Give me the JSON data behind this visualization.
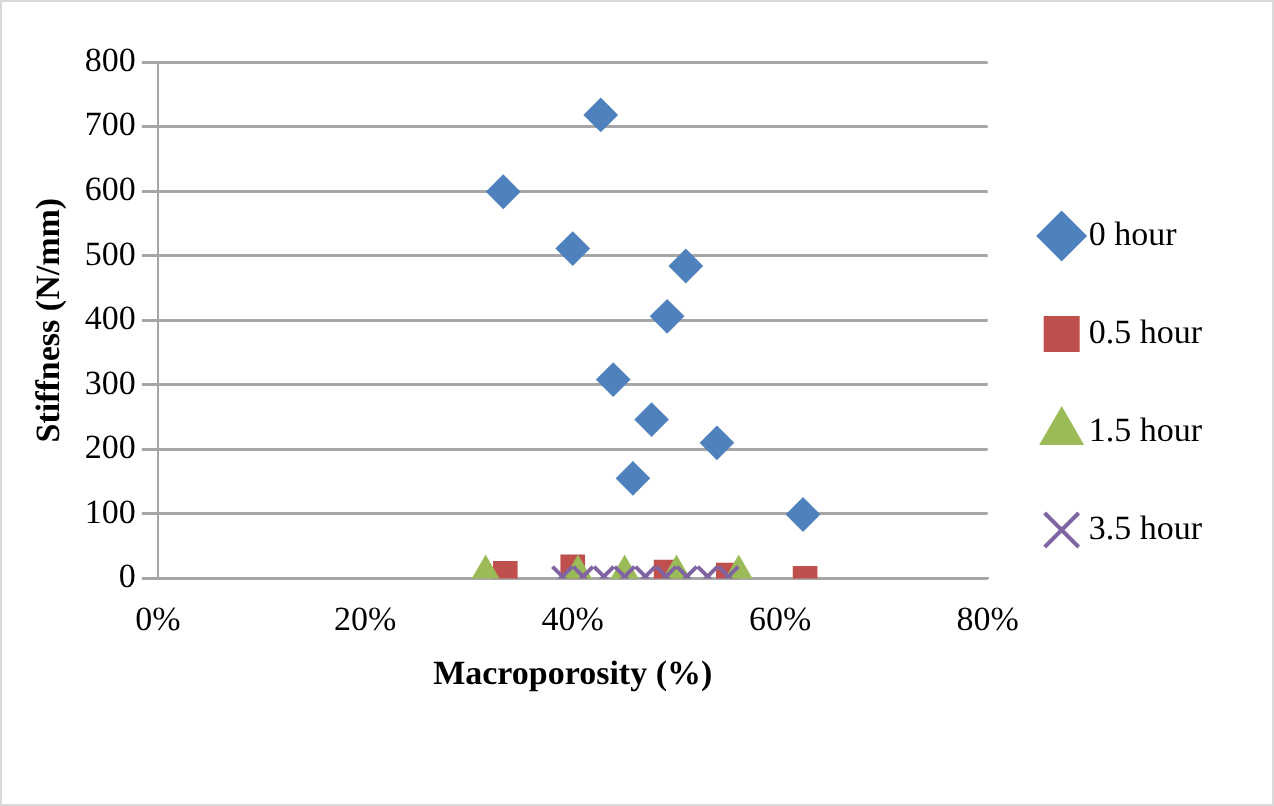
{
  "chart_data": {
    "type": "scatter",
    "xlabel": "Macroporosity (%)",
    "ylabel": "Stiffness (N/mm)",
    "xlim": [
      0,
      80
    ],
    "xticks": [
      {
        "value": 0,
        "label": "0%"
      },
      {
        "value": 20,
        "label": "20%"
      },
      {
        "value": 40,
        "label": "40%"
      },
      {
        "value": 60,
        "label": "60%"
      },
      {
        "value": 80,
        "label": "80%"
      }
    ],
    "ylim": [
      0,
      800
    ],
    "yticks": [
      0,
      100,
      200,
      300,
      400,
      500,
      600,
      700,
      800
    ],
    "grid": "y",
    "legend": "right",
    "series": [
      {
        "name": "0 hour",
        "color": "#4f81bd",
        "marker": "diamond",
        "x": [
          42.7,
          33.3,
          40.0,
          50.9,
          49.1,
          43.9,
          47.6,
          53.9,
          45.8,
          62.2
        ],
        "values": [
          718,
          599,
          511,
          484,
          406,
          308,
          246,
          210,
          155,
          99
        ]
      },
      {
        "name": "0.5 hour",
        "color": "#c0504d",
        "marker": "square",
        "x": [
          33.5,
          40.0,
          49.0,
          55.0,
          62.4
        ],
        "values": [
          8,
          18,
          10,
          5,
          0
        ]
      },
      {
        "name": "1.5 hour",
        "color": "#9bbb59",
        "marker": "triangle",
        "x": [
          31.6,
          40.5,
          45.0,
          50.0,
          56.0
        ],
        "values": [
          3,
          3,
          3,
          3,
          3
        ]
      },
      {
        "name": "3.5 hour",
        "color": "#8064a2",
        "marker": "cross",
        "x": [
          39,
          41,
          43,
          45,
          47,
          49,
          51,
          53,
          55
        ],
        "values": [
          3,
          3,
          3,
          3,
          3,
          3,
          3,
          3,
          3
        ]
      }
    ]
  }
}
